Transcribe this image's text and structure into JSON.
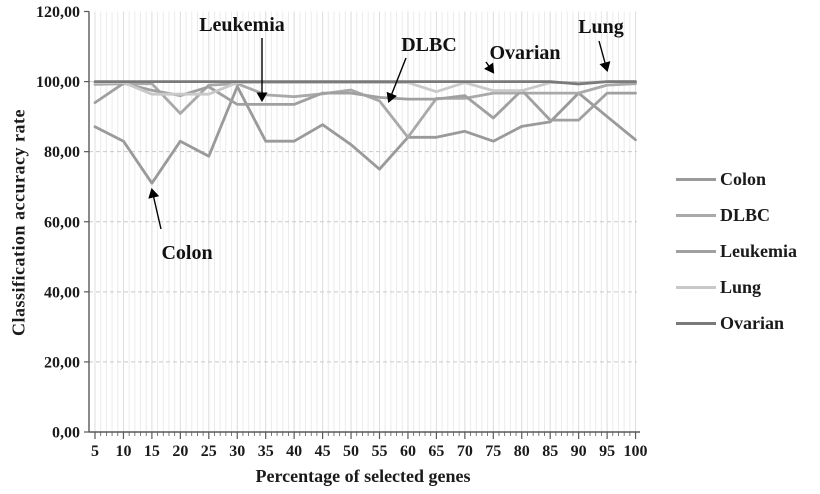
{
  "figure": {
    "xlabel": "Percentage of selected genes",
    "ylabel": "Classification accuracy rate"
  },
  "chart_data": {
    "type": "line",
    "title": "",
    "xlabel": "Percentage of selected genes",
    "ylabel": "Classification accuracy rate",
    "x": [
      5,
      10,
      15,
      20,
      25,
      30,
      35,
      40,
      45,
      50,
      55,
      60,
      65,
      70,
      75,
      80,
      85,
      90,
      95,
      100
    ],
    "x_tick_labels": [
      "5",
      "10",
      "15",
      "20",
      "25",
      "30",
      "35",
      "40",
      "45",
      "50",
      "55",
      "60",
      "65",
      "70",
      "75",
      "80",
      "85",
      "90",
      "95",
      "100"
    ],
    "y_tick_values": [
      0,
      20,
      40,
      60,
      80,
      100,
      120
    ],
    "y_tick_labels": [
      "0,00",
      "20,00",
      "40,00",
      "60,00",
      "80,00",
      "100,00",
      "120,00"
    ],
    "ylim": [
      0,
      120
    ],
    "xlim": [
      5,
      100
    ],
    "grid": {
      "vertical_minor": true,
      "horizontal_dashed": true
    },
    "legend_position": "right",
    "series": [
      {
        "name": "Colon",
        "color": "#9a9a9a",
        "values": [
          87.1,
          83.0,
          71.0,
          83.0,
          78.7,
          98.6,
          83.0,
          83.0,
          87.7,
          82.0,
          75.0,
          84.1,
          84.1,
          85.8,
          83.0,
          87.2,
          88.5,
          96.7,
          90.0,
          83.4
        ]
      },
      {
        "name": "DLBC",
        "color": "#a9a9a9",
        "values": [
          99.2,
          99.4,
          99.4,
          90.9,
          99.0,
          99.4,
          96.2,
          95.7,
          96.5,
          97.6,
          94.5,
          84.1,
          95.2,
          95.2,
          96.7,
          96.7,
          96.7,
          96.7,
          99.0,
          99.4
        ]
      },
      {
        "name": "Leukemia",
        "color": "#a0a0a0",
        "values": [
          94.0,
          99.5,
          97.5,
          96.0,
          98.5,
          93.5,
          93.5,
          93.5,
          96.7,
          96.7,
          95.5,
          95.0,
          95.0,
          96.0,
          89.6,
          97.5,
          89.0,
          89.0,
          96.7,
          96.7
        ]
      },
      {
        "name": "Lung",
        "color": "#c9c9c9",
        "values": [
          99.7,
          99.7,
          96.4,
          96.4,
          96.4,
          99.7,
          99.7,
          99.7,
          99.7,
          99.7,
          99.7,
          99.7,
          97.1,
          99.7,
          97.4,
          97.4,
          99.7,
          99.7,
          100.0,
          100.0
        ]
      },
      {
        "name": "Ovarian",
        "color": "#7a7a7a",
        "values": [
          100,
          100,
          100,
          100,
          100,
          100,
          100,
          100,
          100,
          100,
          100,
          100,
          100,
          100,
          100,
          100,
          100,
          99.3,
          100,
          100
        ]
      }
    ],
    "legend": [
      "Colon",
      "DLBC",
      "Leukemia",
      "Lung",
      "Ovarian"
    ],
    "annotations": [
      {
        "label": "Leukemia",
        "text_x": 242,
        "text_y": 31,
        "ax1": 262,
        "ay1": 38,
        "ax2": 262,
        "ay2": 100
      },
      {
        "label": "DLBC",
        "text_x": 429,
        "text_y": 51,
        "ax1": 406,
        "ay1": 58,
        "ax2": 389,
        "ay2": 101
      },
      {
        "label": "Ovarian",
        "text_x": 525,
        "text_y": 59,
        "ax1": 486,
        "ay1": 62,
        "ax2": 493,
        "ay2": 72
      },
      {
        "label": "Lung",
        "text_x": 601,
        "text_y": 33,
        "ax1": 599,
        "ay1": 41,
        "ax2": 607,
        "ay2": 70
      },
      {
        "label": "Colon",
        "text_x": 187,
        "text_y": 259,
        "ax1": 161,
        "ay1": 229,
        "ax2": 152,
        "ay2": 190
      }
    ],
    "text_color": "#1a1a1a",
    "axis_color": "#595959",
    "grid_minor_color": "#ebebeb",
    "grid_major_color": "#dcdcdc",
    "grid_h_color": "#c9c9c9"
  }
}
